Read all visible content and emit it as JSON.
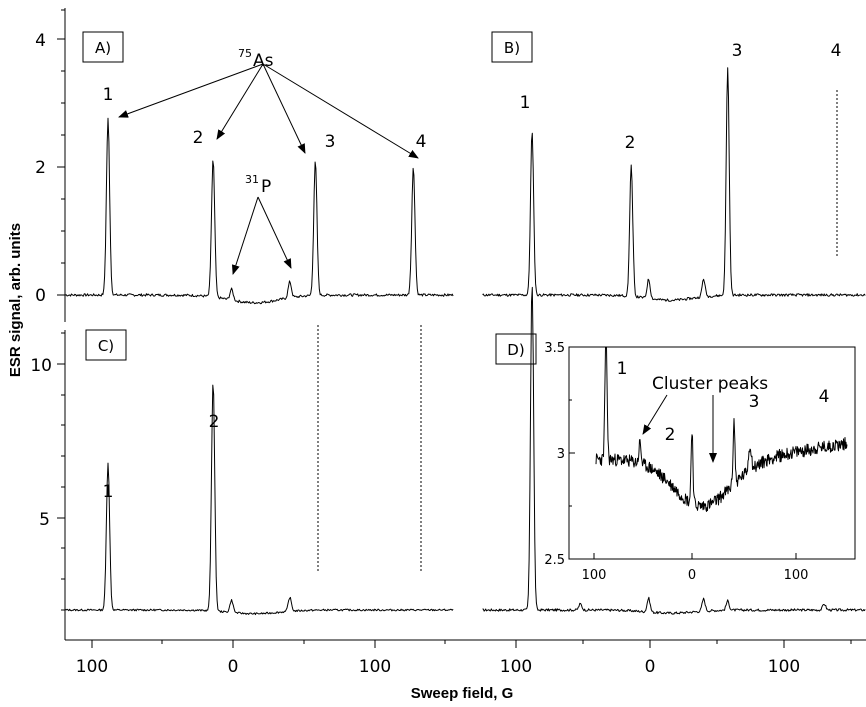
{
  "x_axis_title": "Sweep field, G",
  "y_axis_title": "ESR signal, arb. units",
  "x_ticks": [
    "100",
    "0",
    "100"
  ],
  "inset_x_ticks": [
    "100",
    "0",
    "100"
  ],
  "annotations": {
    "as_iso_mass": "75",
    "as_iso_symbol": "As",
    "p_iso_mass": "31",
    "p_iso_symbol": "P",
    "cluster_peaks": "Cluster peaks"
  },
  "chart_data": [
    {
      "panel": "A)",
      "type": "line",
      "ylim": [
        -0.3,
        4.5
      ],
      "xlim": [
        -120,
        150
      ],
      "y_ticks": [
        0,
        2,
        4
      ],
      "y_tick_labels": [
        "0",
        "2",
        "4"
      ],
      "peaks_as": [
        {
          "label": "1",
          "x": -88,
          "height": 2.75
        },
        {
          "label": "2",
          "x": -14,
          "height": 2.15
        },
        {
          "label": "3",
          "x": 58,
          "height": 2.1
        },
        {
          "label": "4",
          "x": 127,
          "height": 2.0
        }
      ],
      "peaks_p": [
        {
          "x": -1,
          "height": 0.17
        },
        {
          "x": 40,
          "height": 0.25
        }
      ]
    },
    {
      "panel": "B)",
      "type": "line",
      "ylim": [
        -0.3,
        4.5
      ],
      "peaks": [
        {
          "label": "1",
          "x": -88,
          "height": 2.55
        },
        {
          "label": "2",
          "x": -14,
          "height": 2.05
        },
        {
          "label": "3",
          "x": 58,
          "height": 3.55
        },
        {
          "label": "4",
          "x": 127,
          "height": 0,
          "marker": "dotted"
        }
      ],
      "peaks_p": [
        {
          "x": -1,
          "height": 0.3
        },
        {
          "x": 40,
          "height": 0.28
        }
      ]
    },
    {
      "panel": "C)",
      "type": "line",
      "ylim": [
        0.5,
        11.5
      ],
      "y_ticks": [
        5,
        10
      ],
      "y_tick_labels": [
        "5",
        "10"
      ],
      "peaks": [
        {
          "label": "1",
          "x": -88,
          "height": 4.8
        },
        {
          "label": "2",
          "x": -14,
          "height": 7.5
        },
        {
          "label": "3",
          "x": 58,
          "height": 0,
          "marker": "dotted"
        },
        {
          "label": "4",
          "x": 127,
          "height": 0,
          "marker": "dotted"
        }
      ],
      "peaks_p": [
        {
          "x": -1,
          "height": 0.4
        },
        {
          "x": 40,
          "height": 0.45
        }
      ]
    },
    {
      "panel": "D)",
      "type": "line",
      "ylim": [
        0.5,
        11.5
      ],
      "peaks": [
        {
          "label": "1",
          "x": -88,
          "height": 10.7
        }
      ],
      "inset": {
        "type": "line",
        "ylim": [
          2.5,
          3.5
        ],
        "y_ticks": [
          2.5,
          3,
          3.5
        ],
        "y_tick_labels": [
          "2.5",
          "3",
          "3.5"
        ],
        "labels": [
          "1",
          "2",
          "3",
          "4"
        ]
      }
    }
  ]
}
